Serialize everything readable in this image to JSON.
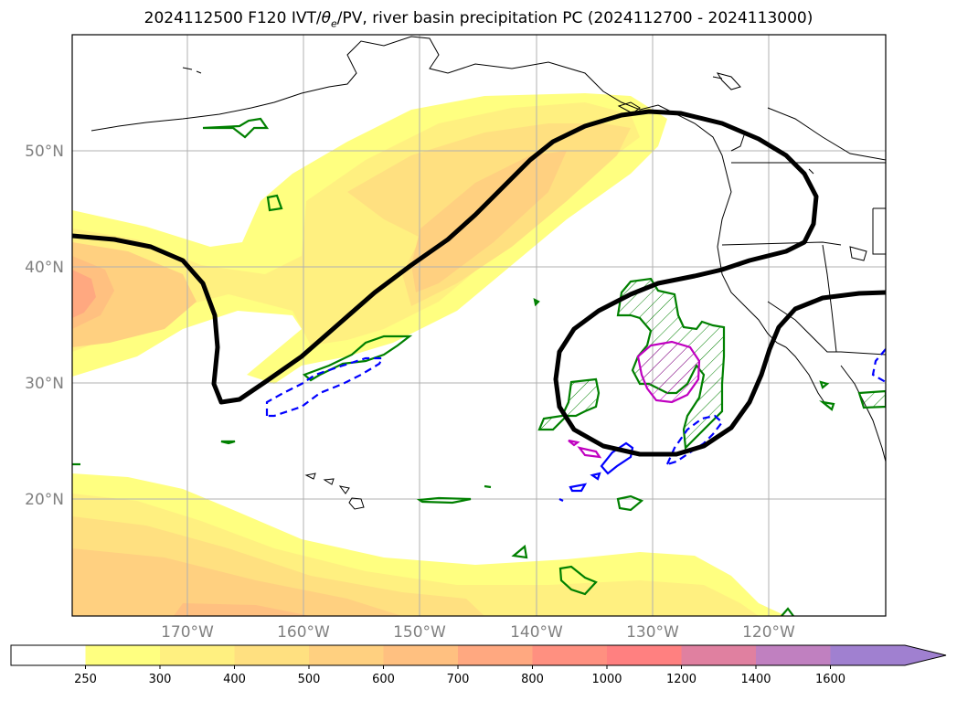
{
  "title": {
    "prefix": "2024112500 F120 IVT/",
    "theta": "θ",
    "theta_sub": "e",
    "suffix": "/PV, river basin precipitation PC (2024112700 - 2024113000)"
  },
  "map": {
    "lat_labels": [
      "50°N",
      "40°N",
      "30°N",
      "20°N"
    ],
    "lon_labels": [
      "170°W",
      "160°W",
      "150°W",
      "140°W",
      "130°W",
      "120°W"
    ],
    "gridlines": true
  },
  "colorbar": {
    "ticks": [
      "250",
      "300",
      "400",
      "500",
      "600",
      "700",
      "800",
      "1000",
      "1200",
      "1400",
      "1600"
    ],
    "colors": [
      "#ffffff",
      "#ffff80",
      "#fff080",
      "#ffe080",
      "#ffd080",
      "#ffc080",
      "#ffa880",
      "#ff9080",
      "#ff8080",
      "#e080a0",
      "#c080c0",
      "#a080d0",
      "#a080d0"
    ],
    "extend": "max"
  },
  "colors": {
    "pv_contour": "#000000",
    "precip_green": "#008000",
    "precip_blue": "#0000ff",
    "precip_magenta": "#c000c0",
    "coastline": "#000000"
  }
}
